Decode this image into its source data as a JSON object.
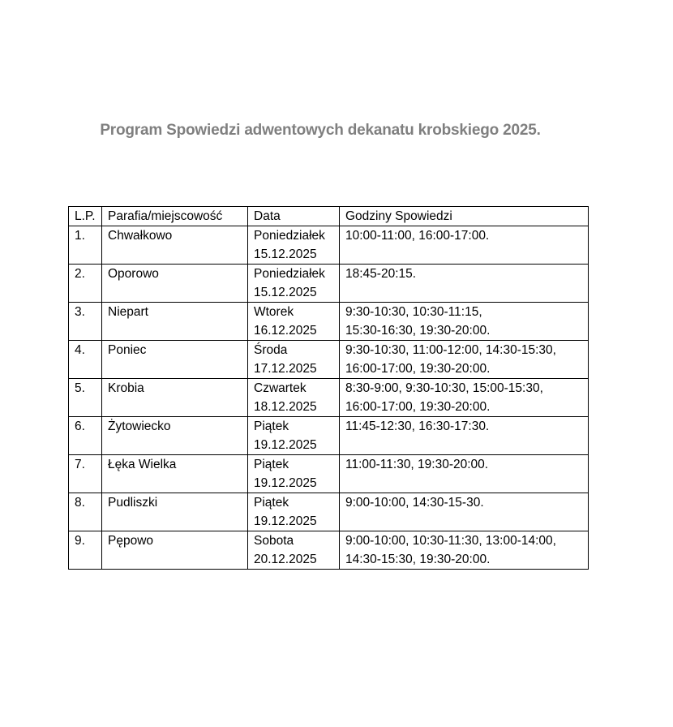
{
  "title": "Program Spowiedzi adwentowych dekanatu krobskiego 2025.",
  "table": {
    "headers": [
      "L.P.",
      "Parafia/miejscowość",
      "Data",
      "Godziny Spowiedzi"
    ],
    "rows": [
      {
        "lp": "1.",
        "parish": "Chwałkowo",
        "day": "Poniedziałek",
        "date": "15.12.2025",
        "hours": [
          "10:00-11:00, 16:00-17:00."
        ]
      },
      {
        "lp": "2.",
        "parish": "Oporowo",
        "day": "Poniedziałek",
        "date": "15.12.2025",
        "hours": [
          "18:45-20:15."
        ]
      },
      {
        "lp": "3.",
        "parish": "Niepart",
        "day": "Wtorek",
        "date": "16.12.2025",
        "hours": [
          "9:30-10:30, 10:30-11:15,",
          "15:30-16:30, 19:30-20:00."
        ]
      },
      {
        "lp": "4.",
        "parish": "Poniec",
        "day": "Środa",
        "date": "17.12.2025",
        "hours": [
          "9:30-10:30, 11:00-12:00, 14:30-15:30,",
          "16:00-17:00, 19:30-20:00."
        ]
      },
      {
        "lp": "5.",
        "parish": "Krobia",
        "day": "Czwartek",
        "date": "18.12.2025",
        "hours": [
          "8:30-9:00, 9:30-10:30, 15:00-15:30,",
          "16:00-17:00, 19:30-20:00."
        ]
      },
      {
        "lp": "6.",
        "parish": "Żytowiecko",
        "day": "Piątek",
        "date": "19.12.2025",
        "hours": [
          "11:45-12:30, 16:30-17:30."
        ]
      },
      {
        "lp": "7.",
        "parish": "Łęka Wielka",
        "day": "Piątek",
        "date": "19.12.2025",
        "hours": [
          "11:00-11:30, 19:30-20:00."
        ]
      },
      {
        "lp": "8.",
        "parish": "Pudliszki",
        "day": "Piątek",
        "date": "19.12.2025",
        "hours": [
          "9:00-10:00, 14:30-15-30."
        ]
      },
      {
        "lp": "9.",
        "parish": "Pępowo",
        "day": "Sobota",
        "date": "20.12.2025",
        "hours": [
          "9:00-10:00, 10:30-11:30, 13:00-14:00,",
          "14:30-15:30, 19:30-20:00."
        ]
      }
    ]
  }
}
